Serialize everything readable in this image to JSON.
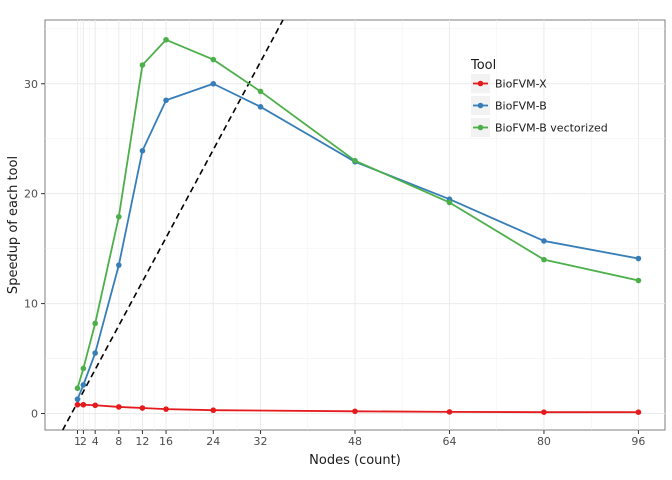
{
  "chart_data": {
    "type": "line",
    "xlabel": "Nodes (count)",
    "ylabel": "Speedup of each tool",
    "x_ticks": [
      1,
      2,
      4,
      8,
      12,
      16,
      24,
      32,
      48,
      64,
      80,
      96
    ],
    "x_tick_labels": [
      "1",
      "2",
      "4",
      "8",
      "12",
      "16",
      "24",
      "32",
      "48",
      "64",
      "80",
      "96"
    ],
    "y_ticks": [
      0,
      10,
      20,
      30
    ],
    "y_tick_labels": [
      "0",
      "10",
      "20",
      "30"
    ],
    "xlim": [
      -4.5,
      100.5
    ],
    "ylim": [
      -1.5,
      35.8
    ],
    "grid": true,
    "legend_title": "Tool",
    "legend_position": "top-right",
    "reference_line": {
      "style": "dashed",
      "color": "#000000",
      "slope": 1,
      "intercept": 0
    },
    "series": [
      {
        "name": "BioFVM-X",
        "color": "#E41A1C",
        "x": [
          1,
          2,
          4,
          8,
          12,
          16,
          24,
          48,
          64,
          80,
          96
        ],
        "y": [
          0.8,
          0.8,
          0.75,
          0.6,
          0.5,
          0.4,
          0.3,
          0.2,
          0.15,
          0.12,
          0.12
        ]
      },
      {
        "name": "BioFVM-B",
        "color": "#377EB8",
        "x": [
          1,
          2,
          4,
          8,
          12,
          16,
          24,
          32,
          48,
          64,
          80,
          96
        ],
        "y": [
          1.3,
          2.6,
          5.5,
          13.5,
          23.9,
          28.5,
          30.0,
          27.9,
          22.9,
          19.5,
          15.7,
          14.1
        ]
      },
      {
        "name": "BioFVM-B vectorized",
        "color": "#4DAF4A",
        "x": [
          1,
          2,
          4,
          8,
          12,
          16,
          24,
          32,
          48,
          64,
          80,
          96
        ],
        "y": [
          2.3,
          4.1,
          8.2,
          17.9,
          31.7,
          34.0,
          32.2,
          29.3,
          23.0,
          19.2,
          14.0,
          12.1
        ]
      }
    ]
  }
}
